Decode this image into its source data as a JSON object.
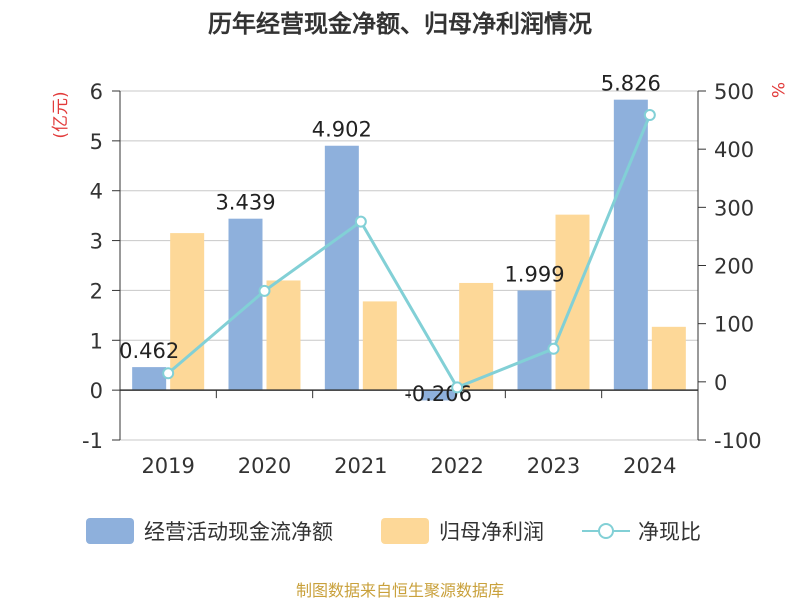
{
  "title": "历年经营现金净额、归母净利润情况",
  "source": "制图数据来自恒生聚源数据库",
  "colors": {
    "cashflow": "#8EB0DC",
    "profit": "#FDD898",
    "ratio": "#82D0D6",
    "axis_text": "#333333",
    "unit_red": "#E23B3B",
    "grid": "#C8C8C8"
  },
  "chart_data": {
    "type": "bar",
    "categories": [
      "2019",
      "2020",
      "2021",
      "2022",
      "2023",
      "2024"
    ],
    "y_left": {
      "unit": "(亿元)",
      "range": [
        -1,
        6
      ],
      "ticks": [
        "-1",
        "0",
        "1",
        "2",
        "3",
        "4",
        "5",
        "6"
      ]
    },
    "y_right": {
      "unit": "%",
      "range": [
        -100,
        500
      ],
      "ticks": [
        "-100",
        "0",
        "100",
        "200",
        "300",
        "400",
        "500"
      ]
    },
    "grid": true,
    "legend_position": "bottom",
    "series": [
      {
        "name": "经营活动现金流净额",
        "type": "bar",
        "axis": "left",
        "values": [
          0.462,
          3.439,
          4.902,
          -0.206,
          1.999,
          5.826
        ],
        "labels": [
          "0.462",
          "3.439",
          "4.902",
          "-0.206",
          "1.999",
          "5.826"
        ]
      },
      {
        "name": "归母净利润",
        "type": "bar",
        "axis": "left",
        "values": [
          3.15,
          2.2,
          1.78,
          2.15,
          3.52,
          1.27
        ]
      },
      {
        "name": "净现比",
        "type": "line",
        "axis": "right",
        "values": [
          14.7,
          156.3,
          275.4,
          -9.6,
          56.8,
          458.7
        ]
      }
    ]
  }
}
